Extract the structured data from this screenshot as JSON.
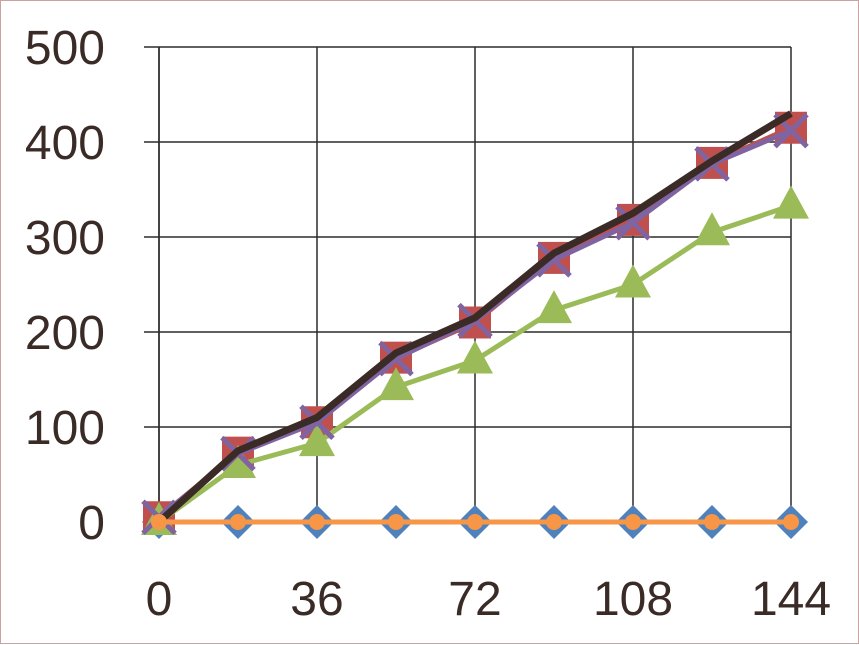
{
  "chart_data": {
    "type": "line",
    "title": "",
    "xlabel": "",
    "ylabel": "",
    "xlim": [
      0,
      144
    ],
    "ylim": [
      0,
      500
    ],
    "x_ticks": [
      0,
      36,
      72,
      108,
      144
    ],
    "y_ticks": [
      0,
      100,
      200,
      300,
      400,
      500
    ],
    "x_tick_labels": [
      "0",
      "36",
      "72",
      "108",
      "144"
    ],
    "y_tick_labels": [
      "0",
      "100",
      "200",
      "300",
      "400",
      "500"
    ],
    "grid": true,
    "legend": "none",
    "x": [
      0,
      18,
      36,
      54,
      72,
      90,
      108,
      126,
      144
    ],
    "series": [
      {
        "color": "#4f81bd",
        "marker": "diamond",
        "values": [
          0,
          0,
          0,
          0,
          0,
          0,
          0,
          0,
          0
        ]
      },
      {
        "color": "#c0504d",
        "marker": "square",
        "values": [
          5,
          73,
          105,
          173,
          210,
          278,
          318,
          378,
          415
        ]
      },
      {
        "color": "#9bbb59",
        "marker": "triangle",
        "values": [
          0,
          60,
          83,
          142,
          170,
          223,
          250,
          305,
          333
        ]
      },
      {
        "color": "#8064a2",
        "marker": "x",
        "values": [
          5,
          72,
          105,
          172,
          212,
          276,
          315,
          377,
          412
        ]
      },
      {
        "color": "#3a2b27",
        "marker": "none",
        "values": [
          0,
          75,
          110,
          178,
          215,
          283,
          325,
          380,
          430
        ]
      },
      {
        "color": "#f79646",
        "marker": "circle",
        "values": [
          0,
          0,
          0,
          0,
          0,
          0,
          0,
          0,
          0
        ]
      }
    ]
  }
}
